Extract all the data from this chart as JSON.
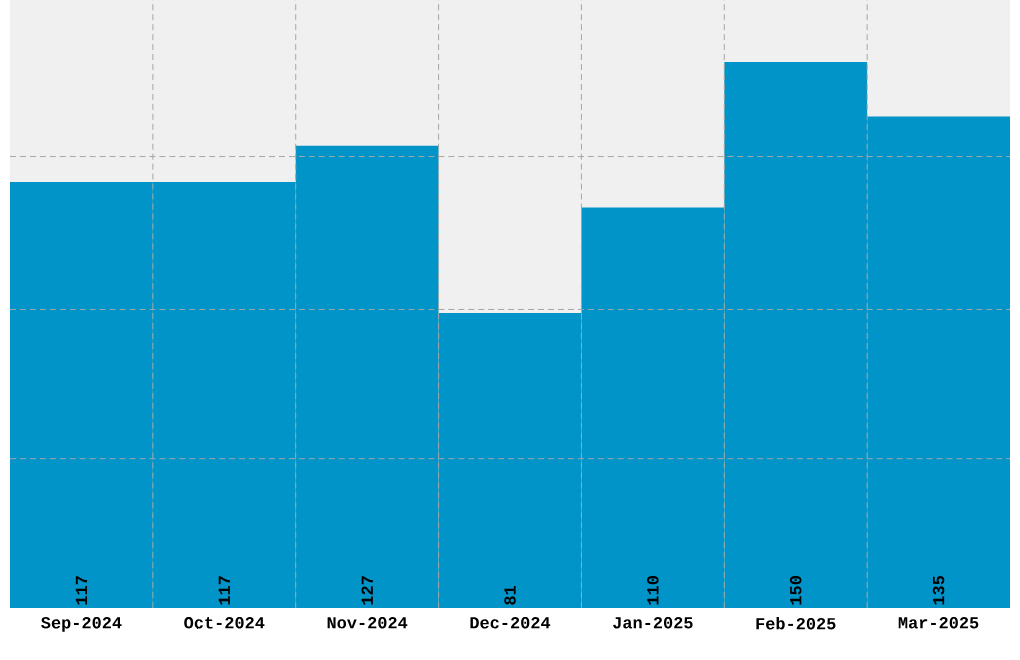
{
  "chart_data": {
    "type": "bar",
    "categories": [
      "Sep-2024",
      "Oct-2024",
      "Nov-2024",
      "Dec-2024",
      "Jan-2025",
      "Feb-2025",
      "Mar-2025"
    ],
    "values": [
      117,
      117,
      127,
      81,
      110,
      150,
      135
    ],
    "color": "#0094c8",
    "ylim": [
      0,
      167
    ],
    "yticks": [
      {
        "value": 41,
        "label": null
      },
      {
        "value": 82,
        "label": null
      },
      {
        "value": 124,
        "label": null
      }
    ],
    "tick_labels": "x",
    "grid": true,
    "data_labels": true
  }
}
